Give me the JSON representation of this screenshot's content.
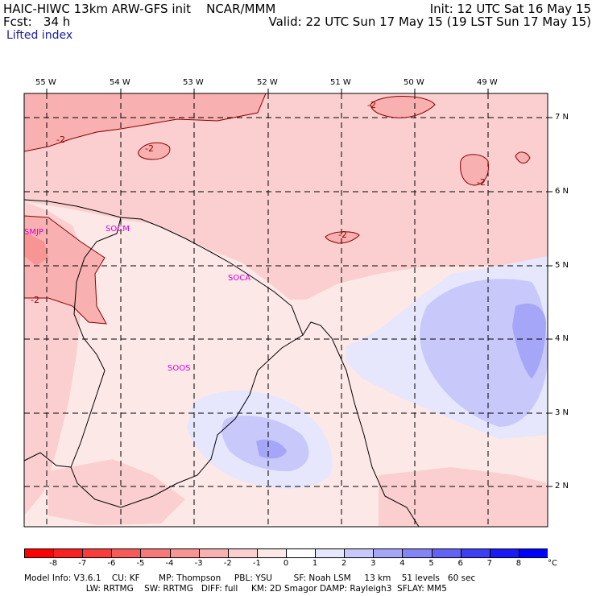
{
  "header": {
    "line1_left": "HAIC-HIWC 13km ARW-GFS init    NCAR/MMM",
    "line1_right": "Init: 12 UTC Sat 16 May 15",
    "line2_left": "Fcst:   34 h",
    "line2_right": "Valid: 22 UTC Sun 17 May 15 (19 LST Sun 17 May 15)",
    "field": "Lifted index"
  },
  "axes": {
    "lon_labels": [
      "55 W",
      "54 W",
      "53 W",
      "52 W",
      "51 W",
      "50 W",
      "49 W"
    ],
    "lat_labels": [
      "7 N",
      "6 N",
      "5 N",
      "4 N",
      "3 N",
      "2 N"
    ]
  },
  "stations": [
    "SMJP",
    "SOCM",
    "SOCA",
    "SOOS"
  ],
  "contour_labels": [
    "-2",
    "-2",
    "-2",
    "-2",
    "-2",
    "-2"
  ],
  "colorbar": {
    "ticks": [
      "-8",
      "-7",
      "-6",
      "-5",
      "-4",
      "-3",
      "-2",
      "-1",
      "0",
      "1",
      "2",
      "3",
      "4",
      "5",
      "6",
      "7",
      "8"
    ],
    "unit": "°C",
    "colors": [
      "#ff0000",
      "#fc1f1f",
      "#fa3c3c",
      "#f85a5a",
      "#f77878",
      "#f79494",
      "#f8b0b0",
      "#fbcfcf",
      "#fde8e8",
      "#ffffff",
      "#e6e6fd",
      "#c8c8fb",
      "#a6a6f8",
      "#8484f5",
      "#6262f4",
      "#3e3ef5",
      "#1a1af8",
      "#0000ff"
    ]
  },
  "footer": {
    "line1": "Model Info: V3.6.1    CU: KF       MP: Thompson     PBL: YSU        SF: Noah LSM     13 km    51 levels   60 sec",
    "line2": "                       LW: RRTMG    SW: RRTMG   DIFF: full     KM: 2D Smagor DAMP: Rayleigh3  SFLAY: MM5"
  }
}
